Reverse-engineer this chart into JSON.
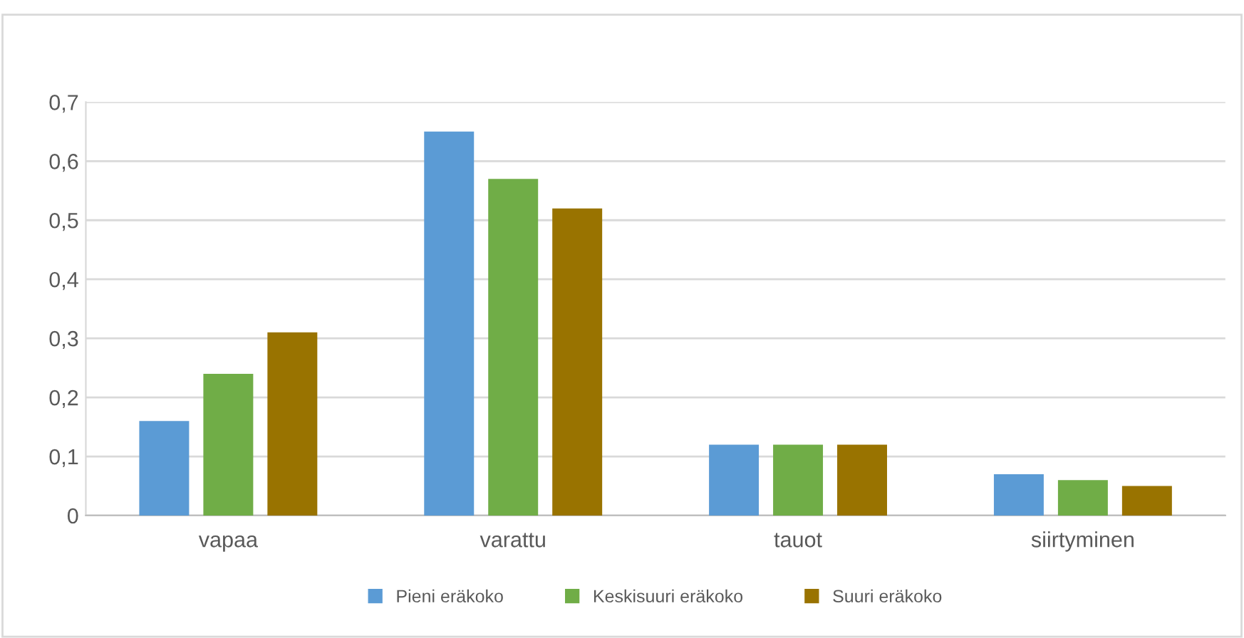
{
  "chart_data": {
    "type": "bar",
    "categories": [
      "vapaa",
      "varattu",
      "tauot",
      "siirtyminen"
    ],
    "series": [
      {
        "name": "Pieni eräkoko",
        "color": "#5b9bd5",
        "values": [
          0.16,
          0.65,
          0.12,
          0.07
        ]
      },
      {
        "name": "Keskisuuri eräkoko",
        "color": "#70ad47",
        "values": [
          0.24,
          0.57,
          0.12,
          0.06
        ]
      },
      {
        "name": "Suuri eräkoko",
        "color": "#997300",
        "values": [
          0.31,
          0.52,
          0.12,
          0.05
        ]
      }
    ],
    "ylim": [
      0,
      0.7
    ],
    "yticks": [
      0,
      {
        "value": 0.1,
        "label": "0,1"
      },
      {
        "value": 0.2,
        "label": "0,2"
      },
      {
        "value": 0.3,
        "label": "0,3"
      },
      {
        "value": 0.4,
        "label": "0,4"
      },
      {
        "value": 0.5,
        "label": "0,5"
      },
      {
        "value": 0.6,
        "label": "0,6"
      },
      {
        "value": 0.7,
        "label": "0,7"
      }
    ],
    "grid": "y",
    "legend": "bottom"
  }
}
